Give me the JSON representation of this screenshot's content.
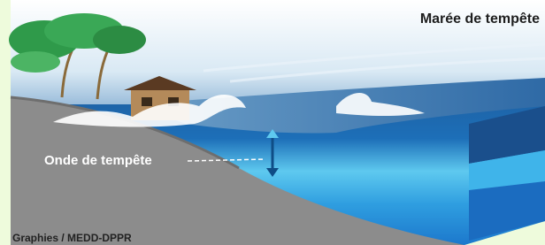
{
  "title": "Marée de tempête",
  "labels": {
    "surge": "Onde de tempête"
  },
  "credit": "Graphies / MEDD-DPPR"
}
